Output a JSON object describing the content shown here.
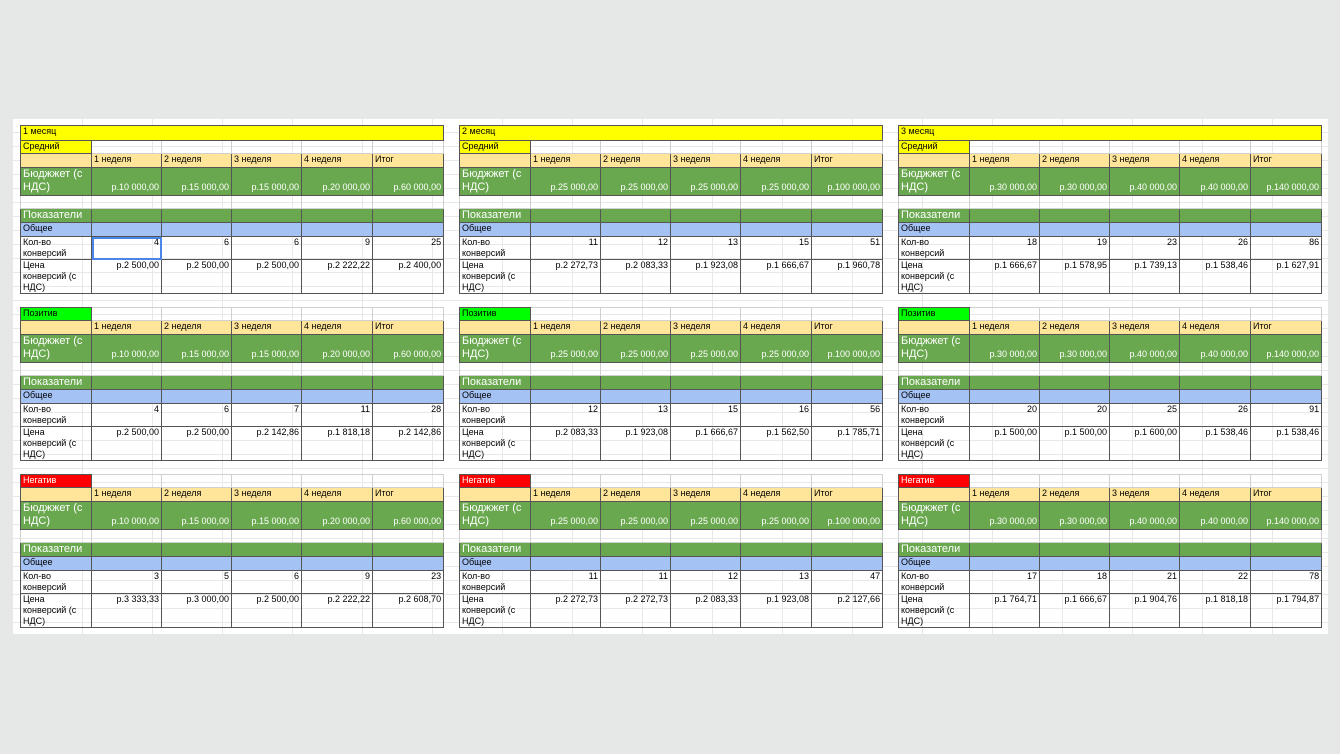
{
  "months": [
    {
      "title": "1 месяц",
      "sections": [
        {
          "label": "Средний",
          "label_color": "yel",
          "header": [
            "1 неделя",
            "2 неделя",
            "3 неделя",
            "4 неделя",
            "Итог"
          ],
          "budget_label": "Бюджжет (с НДС)",
          "budget": [
            "р.10 000,00",
            "р.15 000,00",
            "р.15 000,00",
            "р.20 000,00",
            "р.60 000,00"
          ],
          "indicators_label": "Показатели",
          "general_label": "Общее",
          "conv_label": "Кол-во конверсий",
          "conversions": [
            "4",
            "6",
            "6",
            "9",
            "25"
          ],
          "price_label": "Цена конверсий (с НДС)",
          "prices": [
            "р.2 500,00",
            "р.2 500,00",
            "р.2 500,00",
            "р.2 222,22",
            "р.2 400,00"
          ]
        },
        {
          "label": "Позитив",
          "label_color": "pos",
          "header": [
            "1 неделя",
            "2 неделя",
            "3 неделя",
            "4 неделя",
            "Итог"
          ],
          "budget_label": "Бюджжет (с НДС)",
          "budget": [
            "р.10 000,00",
            "р.15 000,00",
            "р.15 000,00",
            "р.20 000,00",
            "р.60 000,00"
          ],
          "indicators_label": "Показатели",
          "general_label": "Общее",
          "conv_label": "Кол-во конверсий",
          "conversions": [
            "4",
            "6",
            "7",
            "11",
            "28"
          ],
          "price_label": "Цена конверсий (с НДС)",
          "prices": [
            "р.2 500,00",
            "р.2 500,00",
            "р.2 142,86",
            "р.1 818,18",
            "р.2 142,86"
          ]
        },
        {
          "label": "Негатив",
          "label_color": "neg",
          "header": [
            "1 неделя",
            "2 неделя",
            "3 неделя",
            "4 неделя",
            "Итог"
          ],
          "budget_label": "Бюджжет (с НДС)",
          "budget": [
            "р.10 000,00",
            "р.15 000,00",
            "р.15 000,00",
            "р.20 000,00",
            "р.60 000,00"
          ],
          "indicators_label": "Показатели",
          "general_label": "Общее",
          "conv_label": "Кол-во конверсий",
          "conversions": [
            "3",
            "5",
            "6",
            "9",
            "23"
          ],
          "price_label": "Цена конверсий (с НДС)",
          "prices": [
            "р.3 333,33",
            "р.3 000,00",
            "р.2 500,00",
            "р.2 222,22",
            "р.2 608,70"
          ]
        }
      ]
    },
    {
      "title": "2 месяц",
      "sections": [
        {
          "label": "Средний",
          "label_color": "yel",
          "header": [
            "1 неделя",
            "2 неделя",
            "3 неделя",
            "4 неделя",
            "Итог"
          ],
          "budget_label": "Бюджжет (с НДС)",
          "budget": [
            "р.25 000,00",
            "р.25 000,00",
            "р.25 000,00",
            "р.25 000,00",
            "р.100 000,00"
          ],
          "indicators_label": "Показатели",
          "general_label": "Общее",
          "conv_label": "Кол-во конверсий",
          "conversions": [
            "11",
            "12",
            "13",
            "15",
            "51"
          ],
          "price_label": "Цена конверсий (с НДС)",
          "prices": [
            "р.2 272,73",
            "р.2 083,33",
            "р.1 923,08",
            "р.1 666,67",
            "р.1 960,78"
          ]
        },
        {
          "label": "Позитив",
          "label_color": "pos",
          "header": [
            "1 неделя",
            "2 неделя",
            "3 неделя",
            "4 неделя",
            "Итог"
          ],
          "budget_label": "Бюджжет (с НДС)",
          "budget": [
            "р.25 000,00",
            "р.25 000,00",
            "р.25 000,00",
            "р.25 000,00",
            "р.100 000,00"
          ],
          "indicators_label": "Показатели",
          "general_label": "Общее",
          "conv_label": "Кол-во конверсий",
          "conversions": [
            "12",
            "13",
            "15",
            "16",
            "56"
          ],
          "price_label": "Цена конверсий (с НДС)",
          "prices": [
            "р.2 083,33",
            "р.1 923,08",
            "р.1 666,67",
            "р.1 562,50",
            "р.1 785,71"
          ]
        },
        {
          "label": "Негатив",
          "label_color": "neg",
          "header": [
            "1 неделя",
            "2 неделя",
            "3 неделя",
            "4 неделя",
            "Итог"
          ],
          "budget_label": "Бюджжет (с НДС)",
          "budget": [
            "р.25 000,00",
            "р.25 000,00",
            "р.25 000,00",
            "р.25 000,00",
            "р.100 000,00"
          ],
          "indicators_label": "Показатели",
          "general_label": "Общее",
          "conv_label": "Кол-во конверсий",
          "conversions": [
            "11",
            "11",
            "12",
            "13",
            "47"
          ],
          "price_label": "Цена конверсий (с НДС)",
          "prices": [
            "р.2 272,73",
            "р.2 272,73",
            "р.2 083,33",
            "р.1 923,08",
            "р.2 127,66"
          ]
        }
      ]
    },
    {
      "title": "3 месяц",
      "sections": [
        {
          "label": "Средний",
          "label_color": "yel",
          "header": [
            "1 неделя",
            "2 неделя",
            "3 неделя",
            "4 неделя",
            "Итог"
          ],
          "budget_label": "Бюджжет (с НДС)",
          "budget": [
            "р.30 000,00",
            "р.30 000,00",
            "р.40 000,00",
            "р.40 000,00",
            "р.140 000,00"
          ],
          "indicators_label": "Показатели",
          "general_label": "Общее",
          "conv_label": "Кол-во конверсий",
          "conversions": [
            "18",
            "19",
            "23",
            "26",
            "86"
          ],
          "price_label": "Цена конверсий (с НДС)",
          "prices": [
            "р.1 666,67",
            "р.1 578,95",
            "р.1 739,13",
            "р.1 538,46",
            "р.1 627,91"
          ]
        },
        {
          "label": "Позитив",
          "label_color": "pos",
          "header": [
            "1 неделя",
            "2 неделя",
            "3 неделя",
            "4 неделя",
            "Итог"
          ],
          "budget_label": "Бюджжет (с НДС)",
          "budget": [
            "р.30 000,00",
            "р.30 000,00",
            "р.40 000,00",
            "р.40 000,00",
            "р.140 000,00"
          ],
          "indicators_label": "Показатели",
          "general_label": "Общее",
          "conv_label": "Кол-во конверсий",
          "conversions": [
            "20",
            "20",
            "25",
            "26",
            "91"
          ],
          "price_label": "Цена конверсий (с НДС)",
          "prices": [
            "р.1 500,00",
            "р.1 500,00",
            "р.1 600,00",
            "р.1 538,46",
            "р.1 538,46"
          ]
        },
        {
          "label": "Негатив",
          "label_color": "neg",
          "header": [
            "1 неделя",
            "2 неделя",
            "3 неделя",
            "4 неделя",
            "Итог"
          ],
          "budget_label": "Бюджжет (с НДС)",
          "budget": [
            "р.30 000,00",
            "р.30 000,00",
            "р.40 000,00",
            "р.40 000,00",
            "р.140 000,00"
          ],
          "indicators_label": "Показатели",
          "general_label": "Общее",
          "conv_label": "Кол-во конверсий",
          "conversions": [
            "17",
            "18",
            "21",
            "22",
            "78"
          ],
          "price_label": "Цена конверсий (с НДС)",
          "prices": [
            "р.1 764,71",
            "р.1 666,67",
            "р.1 904,76",
            "р.1 818,18",
            "р.1 794,87"
          ]
        }
      ]
    }
  ]
}
